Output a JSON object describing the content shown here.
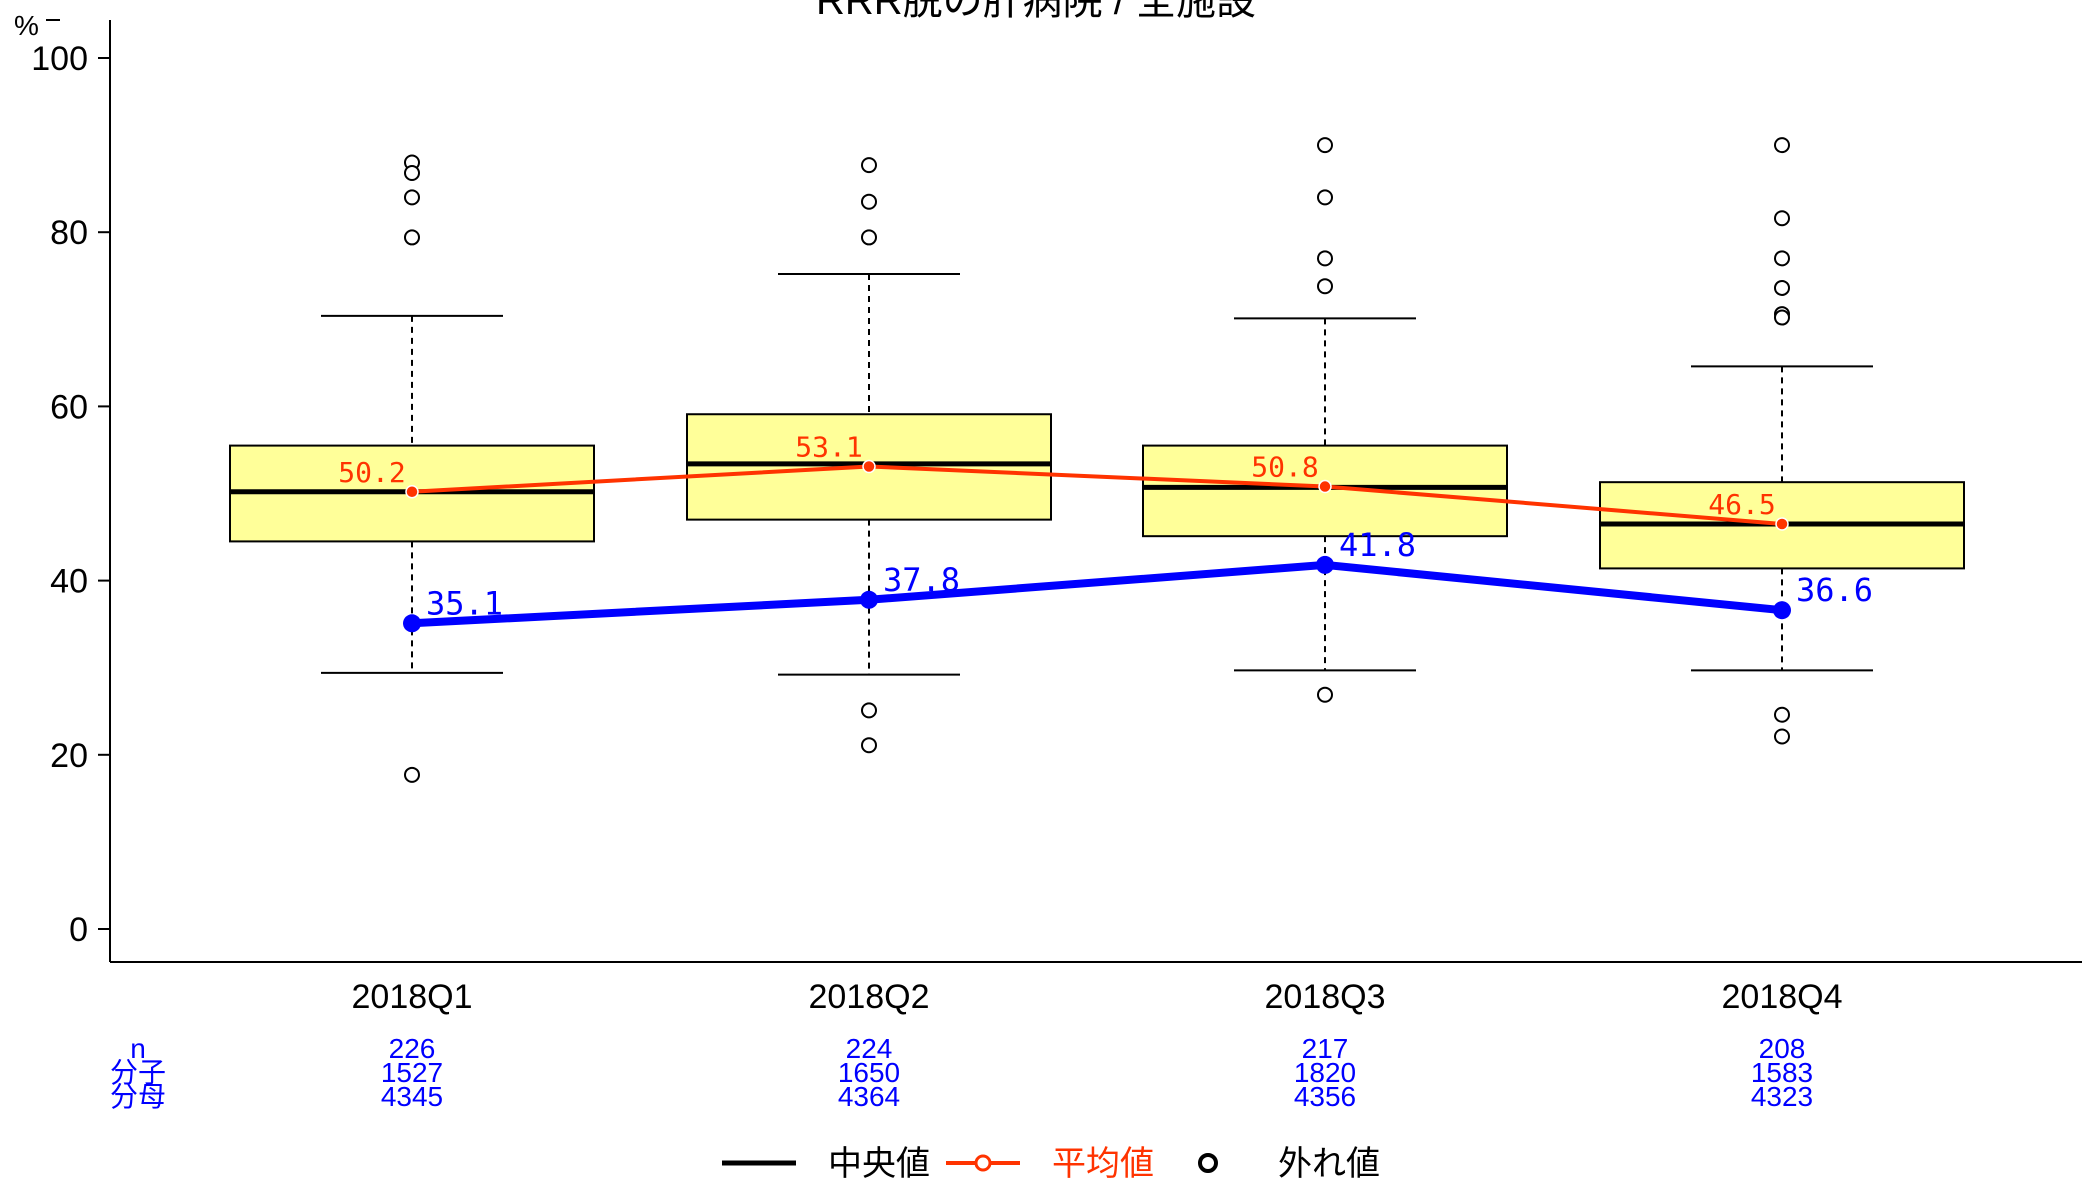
{
  "chart_data": {
    "type": "box",
    "title": "RRR脱の肝病院 / 全施設",
    "ylabel": "%",
    "ylim": [
      0,
      100
    ],
    "yticks": [
      0,
      20,
      40,
      60,
      80,
      100
    ],
    "categories": [
      "2018Q1",
      "2018Q2",
      "2018Q3",
      "2018Q4"
    ],
    "boxes": [
      {
        "q1": 44.5,
        "median": 50.2,
        "q3": 55.5,
        "whisker_low": 29.4,
        "whisker_high": 70.4,
        "outliers": [
          88.0,
          86.8,
          84.0,
          79.4,
          17.7
        ]
      },
      {
        "q1": 47.0,
        "median": 53.4,
        "q3": 59.1,
        "whisker_low": 29.2,
        "whisker_high": 75.2,
        "outliers": [
          87.7,
          83.5,
          79.4,
          25.1,
          21.1
        ]
      },
      {
        "q1": 45.1,
        "median": 50.7,
        "q3": 55.5,
        "whisker_low": 29.7,
        "whisker_high": 70.1,
        "outliers": [
          90.0,
          84.0,
          77.0,
          73.8,
          26.9
        ]
      },
      {
        "q1": 41.4,
        "median": 46.5,
        "q3": 51.3,
        "whisker_low": 29.7,
        "whisker_high": 64.6,
        "outliers": [
          90.0,
          81.6,
          77.0,
          73.6,
          70.6,
          70.2,
          24.6,
          22.1
        ]
      }
    ],
    "series": [
      {
        "name": "平均値",
        "values": [
          50.2,
          53.1,
          50.8,
          46.5
        ],
        "labels": [
          "50.2",
          "53.1",
          "50.8",
          "46.5"
        ],
        "color": "#ff3300"
      },
      {
        "values": [
          35.1,
          37.8,
          41.8,
          36.6
        ],
        "labels": [
          "35.1",
          "37.8",
          "41.8",
          "36.6"
        ],
        "color": "#0000ff"
      }
    ],
    "table": {
      "row_labels": [
        "n",
        "分子",
        "分母"
      ],
      "rows": [
        [
          "226",
          "224",
          "217",
          "208"
        ],
        [
          "1527",
          "1650",
          "1820",
          "1583"
        ],
        [
          "4345",
          "4364",
          "4356",
          "4323"
        ]
      ]
    },
    "legend": {
      "position": "bottom",
      "items": [
        {
          "label": "中央値",
          "kind": "median",
          "color": "#000000"
        },
        {
          "label": "平均値",
          "kind": "mean",
          "color": "#ff3300"
        },
        {
          "label": "外れ値",
          "kind": "outlier",
          "color": "#000000"
        }
      ]
    },
    "colors": {
      "box_fill": "#ffff99",
      "axis": "#000000",
      "table_text": "#0000ff"
    },
    "grid": false
  }
}
